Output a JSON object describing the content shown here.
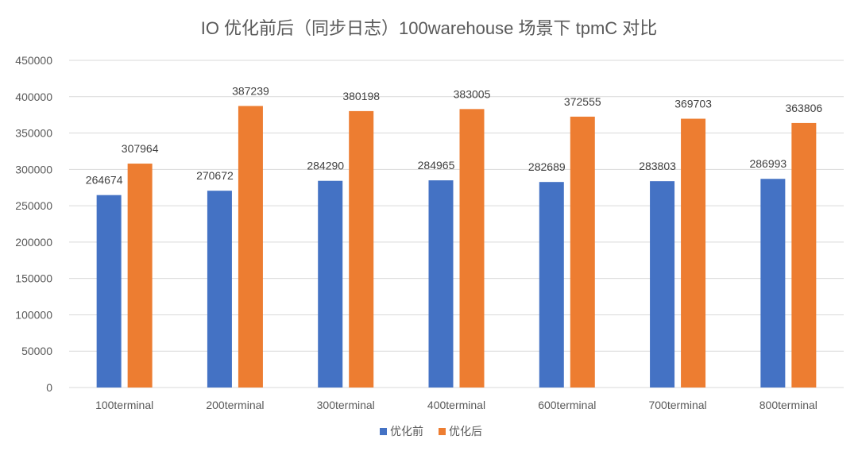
{
  "chart_data": {
    "type": "bar",
    "title": "IO 优化前后（同步日志）100warehouse 场景下 tpmC 对比",
    "categories": [
      "100terminal",
      "200terminal",
      "300terminal",
      "400terminal",
      "600terminal",
      "700terminal",
      "800terminal"
    ],
    "series": [
      {
        "name": "优化前",
        "color": "#4472c4",
        "values": [
          264674,
          270672,
          284290,
          284965,
          282689,
          283803,
          286993
        ]
      },
      {
        "name": "优化后",
        "color": "#ed7d31",
        "values": [
          307964,
          387239,
          380198,
          383005,
          372555,
          369703,
          363806
        ]
      }
    ],
    "ylim": [
      0,
      450000
    ],
    "yticks": [
      0,
      50000,
      100000,
      150000,
      200000,
      250000,
      300000,
      350000,
      400000,
      450000
    ],
    "ytick_labels": [
      "0",
      "50000",
      "100000",
      "150000",
      "200000",
      "250000",
      "300000",
      "350000",
      "400000",
      "450000"
    ],
    "grid": true,
    "legend_position": "bottom"
  }
}
